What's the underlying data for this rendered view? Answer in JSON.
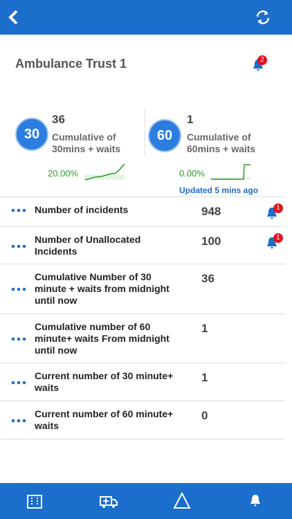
{
  "header": {
    "title": "Ambulance Trust 1",
    "notification_count": "2"
  },
  "summary": [
    {
      "badge": "30",
      "value": "36",
      "label_lines": [
        "Cumulative of",
        "30mins + waits"
      ],
      "percent": "20.00%"
    },
    {
      "badge": "60",
      "value": "1",
      "label_lines": [
        "Cumulative of",
        "60mins + waits"
      ],
      "percent": "0.00%"
    }
  ],
  "updated": "Updated 5 mins ago",
  "rows": [
    {
      "label_lines": [
        "Number of incidents"
      ],
      "value": "948",
      "alert_count": "1"
    },
    {
      "label_lines": [
        "Number of Unallocated",
        "Incidents"
      ],
      "value": "100",
      "alert_count": "1"
    },
    {
      "label_lines": [
        "Cumulative Number of 30",
        "minute + waits from midnight",
        "until now"
      ],
      "value": "36"
    },
    {
      "label_lines": [
        "Cumulative number of 60",
        "minute+ waits From midnight",
        "until now"
      ],
      "value": "1"
    },
    {
      "label_lines": [
        "Current number of 30 minute+",
        "waits"
      ],
      "value": "1"
    },
    {
      "label_lines": [
        "Current number of 60 minute+",
        "waits"
      ],
      "value": "0"
    }
  ]
}
